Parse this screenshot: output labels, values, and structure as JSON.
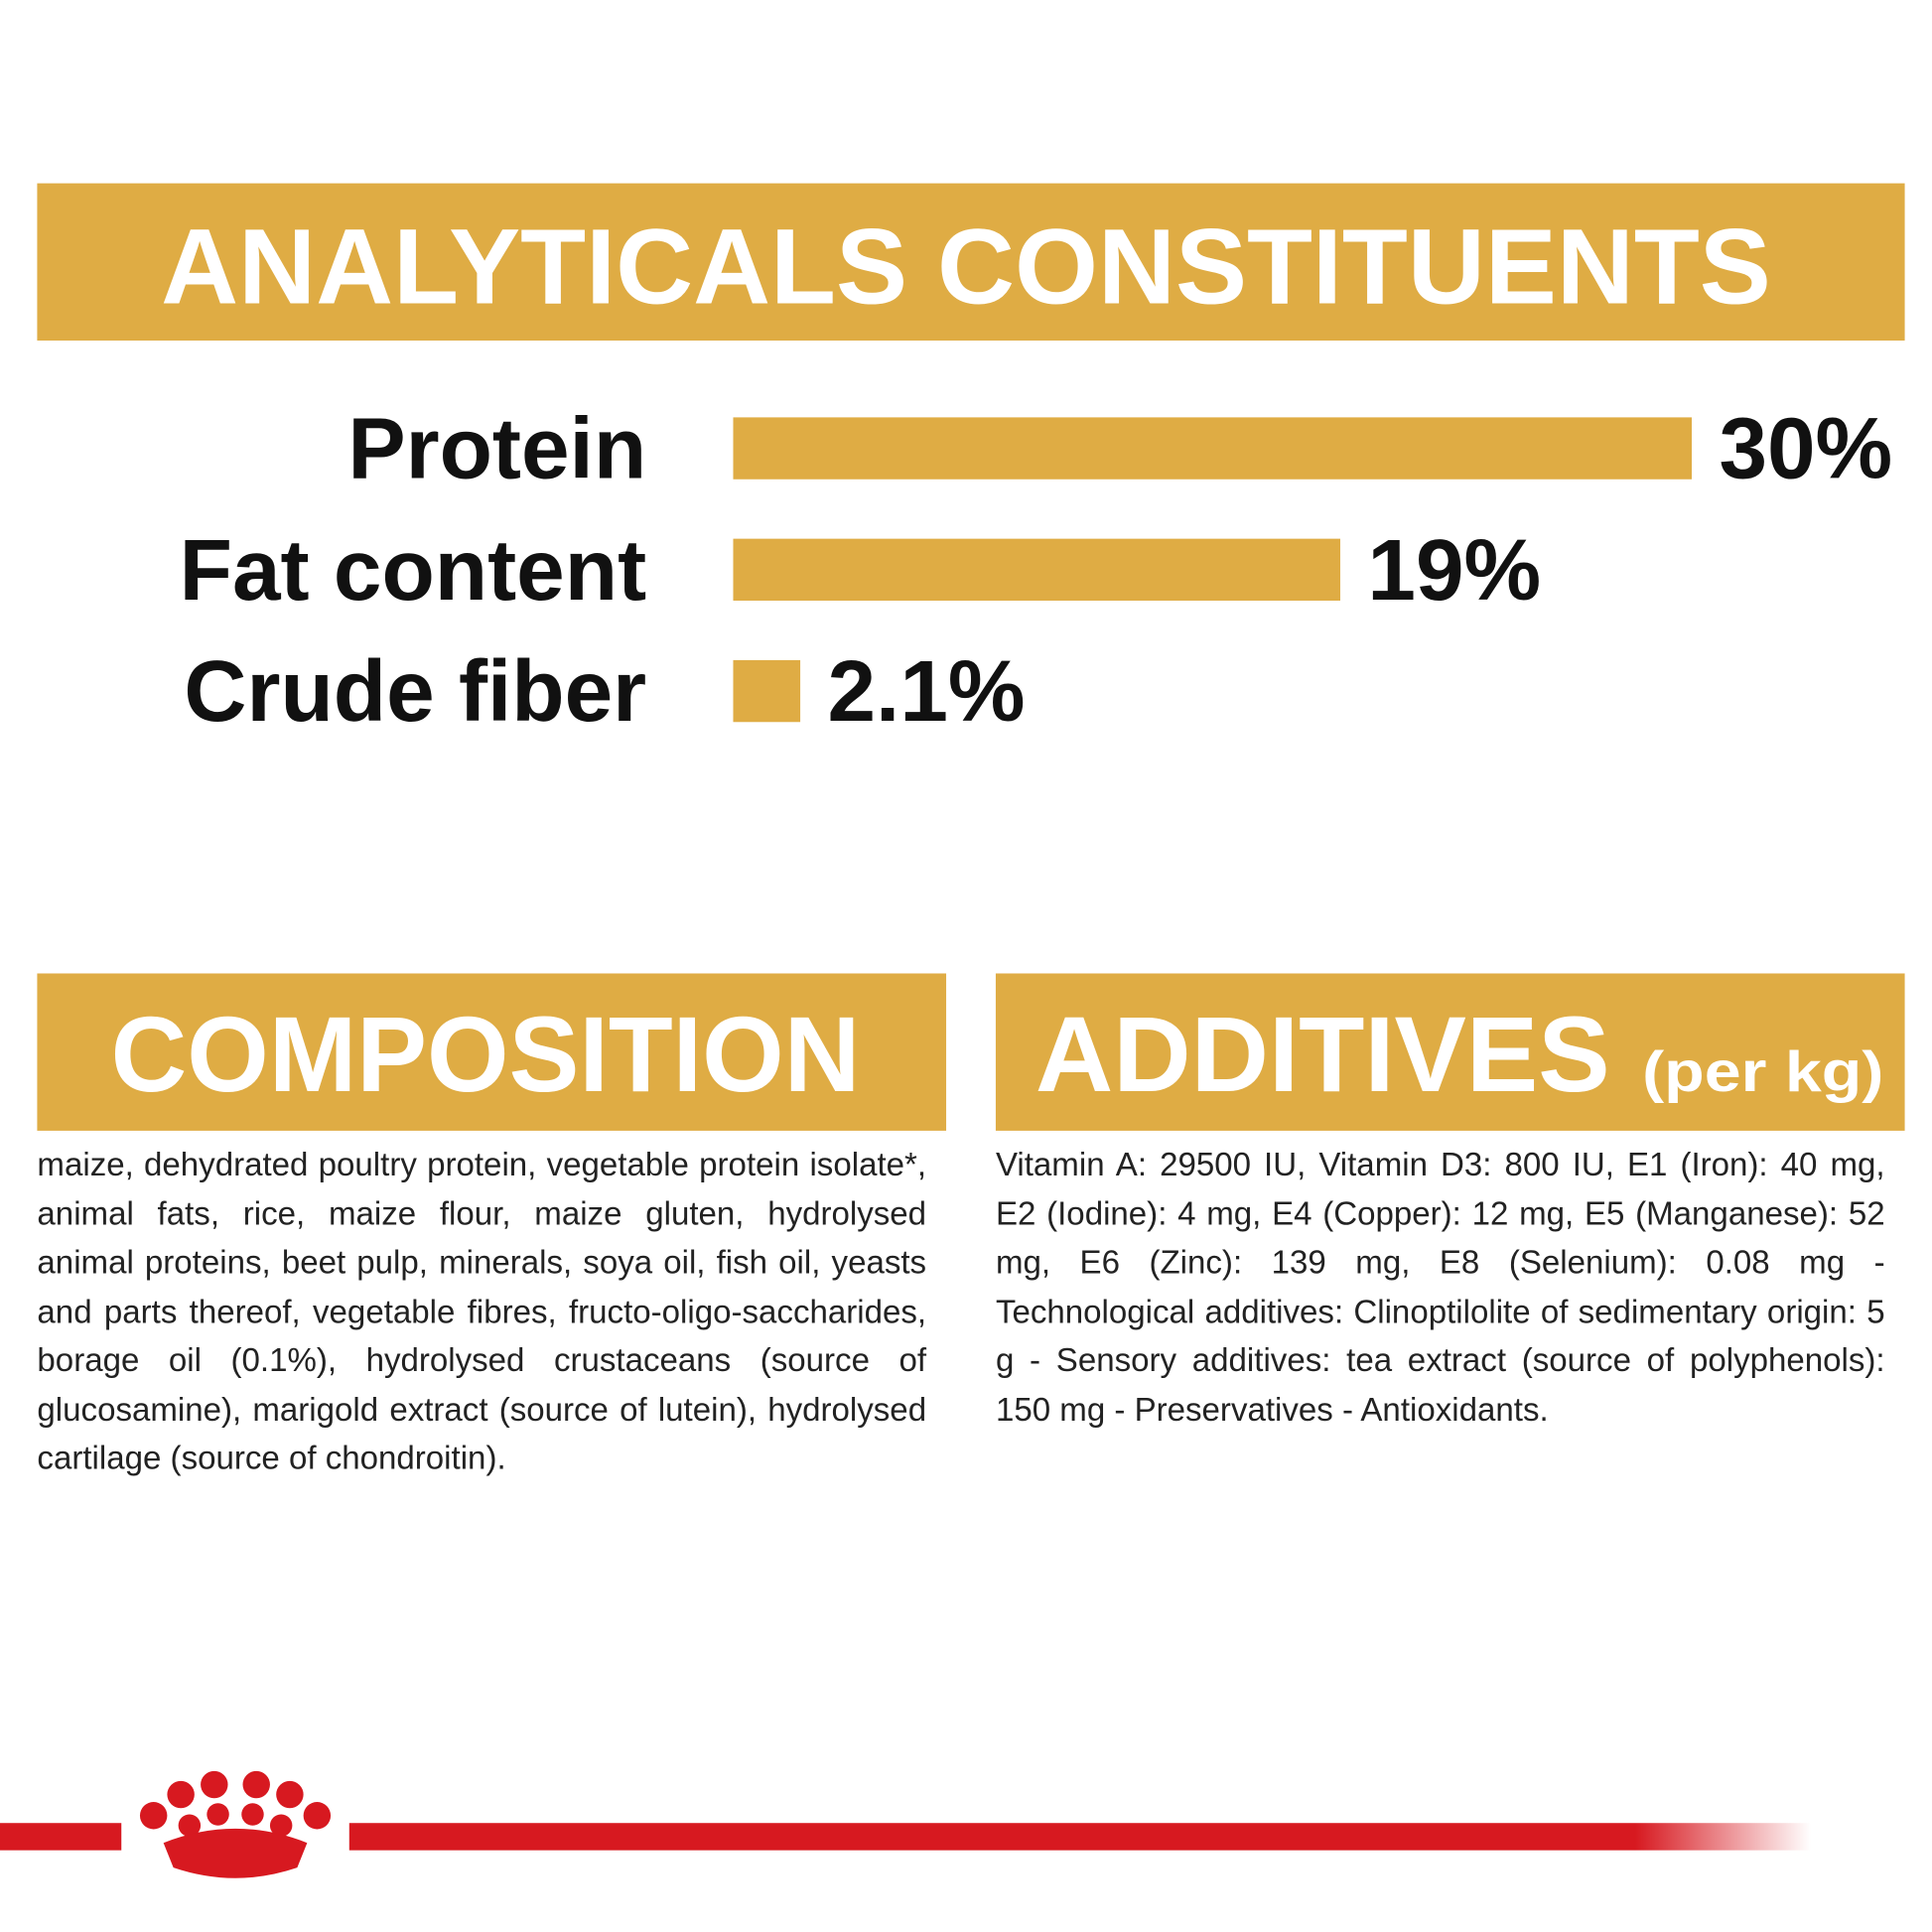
{
  "chart_data": {
    "type": "bar",
    "title": "ANALYTICALS CONSTITUENTS",
    "categories": [
      "Protein",
      "Fat content",
      "Crude fiber"
    ],
    "values": [
      30,
      19,
      2.1
    ],
    "value_labels": [
      "30%",
      "19%",
      "2.1%"
    ],
    "color": "#dfac44"
  },
  "composition": {
    "title": "COMPOSITION",
    "text": "maize, dehydrated poultry protein, vegetable protein isolate*, animal fats, rice, maize flour, maize gluten, hydrolysed animal proteins, beet pulp, minerals, soya oil, fish oil, yeasts and parts thereof, vegetable fibres, fructo-oligo-saccharides, borage oil (0.1%), hydrolysed crustaceans (source of glucosamine), marigold extract (source of lutein), hydrolysed cartilage (source of chondroitin)."
  },
  "additives": {
    "title": "ADDITIVES",
    "subtitle": "(per kg)",
    "text": "Vitamin A: 29500 IU, Vitamin D3: 800 IU, E1 (Iron): 40 mg, E2 (Iodine): 4 mg, E4 (Copper): 12 mg, E5 (Manganese): 52 mg, E6 (Zinc): 139 mg, E8 (Selenium): 0.08 mg - Technological additives: Clinoptilolite of sedimentary origin: 5 g - Sensory additives: tea extract (source of polyphenols): 150 mg - Preservatives - Antioxidants."
  }
}
